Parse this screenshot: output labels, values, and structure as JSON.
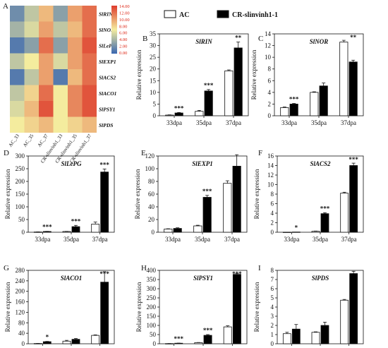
{
  "legend": {
    "ac": "AC",
    "cr": "CR-slinvinh1-1"
  },
  "ylabel": "Relative expression",
  "heatmap": {
    "letter": "A",
    "rows": [
      "SlRIN",
      "SlNOR",
      "SlLePG",
      "SlEXP1",
      "SlACS2",
      "SlACO1",
      "SlPSY1",
      "SlPDS"
    ],
    "cols": [
      "AC_33",
      "AC_35",
      "AC_37",
      "CR-slinvinh1_33",
      "CR-slinvinh1_35",
      "CR-slinvinh1_37"
    ],
    "values": [
      [
        2,
        5,
        9,
        3,
        10,
        12
      ],
      [
        4,
        6,
        10,
        5,
        9,
        12
      ],
      [
        1,
        3,
        12,
        3,
        10,
        13
      ],
      [
        5,
        7,
        10,
        6,
        10,
        12
      ],
      [
        1,
        5,
        10,
        1,
        9,
        12
      ],
      [
        5,
        8,
        12,
        7,
        11,
        13
      ],
      [
        6,
        9,
        13,
        7,
        11,
        13
      ],
      [
        7,
        8,
        9,
        7,
        8,
        9
      ]
    ],
    "colorbar_ticks": [
      "14.00",
      "12.00",
      "10.00",
      "8.00",
      "6.00",
      "4.00",
      "2.00",
      "0.00"
    ],
    "min": 0,
    "max": 14,
    "colors": [
      "#3a67b0",
      "#f4ec9e",
      "#de3b2c"
    ]
  },
  "chart_data": [
    {
      "id": "B",
      "type": "bar",
      "title": "SlRIN",
      "categories": [
        "33dpa",
        "35dpa",
        "37dpa"
      ],
      "series": [
        {
          "name": "AC",
          "values": [
            0.3,
            1.9,
            19.2
          ],
          "err": [
            0.1,
            0.4,
            0.4
          ]
        },
        {
          "name": "CR-slinvinh1-1",
          "values": [
            1.2,
            10.6,
            29
          ],
          "err": [
            0.2,
            0.6,
            2.5
          ]
        }
      ],
      "ylim": [
        0,
        35
      ],
      "yticks": [
        0,
        5,
        10,
        15,
        20,
        25,
        30,
        35
      ],
      "sig": [
        "***",
        "***",
        "**"
      ]
    },
    {
      "id": "C",
      "type": "bar",
      "title": "SlNOR",
      "categories": [
        "33dpa",
        "35dpa",
        "37dpa"
      ],
      "series": [
        {
          "name": "AC",
          "values": [
            1.4,
            4,
            12.6
          ],
          "err": [
            0.1,
            0.1,
            0.3
          ]
        },
        {
          "name": "CR-slinvinh1-1",
          "values": [
            2,
            5.1,
            9.2
          ],
          "err": [
            0.1,
            0.5,
            0.3
          ]
        }
      ],
      "ylim": [
        0,
        14
      ],
      "yticks": [
        0,
        2,
        4,
        6,
        8,
        10,
        12,
        14
      ],
      "sig": [
        "***",
        "",
        ""
      ]
    },
    {
      "id": "D",
      "type": "bar",
      "title": "SlLePG",
      "categories": [
        "33dpa",
        "35dpa",
        "37dpa"
      ],
      "series": [
        {
          "name": "AC",
          "values": [
            1,
            3,
            32
          ],
          "err": [
            0.3,
            0.5,
            8
          ]
        },
        {
          "name": "CR-slinvinh1-1",
          "values": [
            3,
            22,
            237
          ],
          "err": [
            0.5,
            5,
            12
          ]
        }
      ],
      "ylim": [
        0,
        300
      ],
      "yticks": [
        0,
        50,
        100,
        150,
        200,
        250,
        300
      ],
      "sig": [
        "***",
        "***",
        "***"
      ]
    },
    {
      "id": "E",
      "type": "bar",
      "title": "SlEXP1",
      "categories": [
        "33dpa",
        "35dpa",
        "37dpa"
      ],
      "series": [
        {
          "name": "AC",
          "values": [
            5,
            10,
            77
          ],
          "err": [
            0.5,
            1,
            4
          ]
        },
        {
          "name": "CR-slinvinh1-1",
          "values": [
            6,
            55,
            104
          ],
          "err": [
            1,
            3,
            18
          ]
        }
      ],
      "ylim": [
        0,
        120
      ],
      "yticks": [
        0,
        20,
        40,
        60,
        80,
        100,
        120
      ],
      "sig": [
        "",
        "***",
        ""
      ]
    },
    {
      "id": "F",
      "type": "bar",
      "title": "SlACS2",
      "categories": [
        "33dpa",
        "35dpa",
        "37dpa"
      ],
      "series": [
        {
          "name": "AC",
          "values": [
            0.02,
            0.2,
            8.2
          ],
          "err": [
            0,
            0.05,
            0.2
          ]
        },
        {
          "name": "CR-slinvinh1-1",
          "values": [
            0.05,
            3.9,
            14
          ],
          "err": [
            0,
            0.2,
            0.5
          ]
        }
      ],
      "ylim": [
        0,
        16
      ],
      "yticks": [
        0,
        2,
        4,
        6,
        8,
        10,
        12,
        14,
        16
      ],
      "sig": [
        "*",
        "***",
        "***"
      ]
    },
    {
      "id": "G",
      "type": "bar",
      "title": "SlACO1",
      "categories": [
        "33dpa",
        "35dpa",
        "37dpa"
      ],
      "series": [
        {
          "name": "AC",
          "values": [
            1,
            10,
            32
          ],
          "err": [
            0.3,
            3,
            2
          ]
        },
        {
          "name": "CR-slinvinh1-1",
          "values": [
            8,
            17,
            235
          ],
          "err": [
            1,
            3,
            40
          ]
        }
      ],
      "ylim": [
        0,
        280
      ],
      "yticks": [
        0,
        40,
        80,
        120,
        160,
        200,
        240,
        280
      ],
      "sig": [
        "*",
        "",
        "***"
      ]
    },
    {
      "id": "H",
      "type": "bar",
      "title": "SlPSY1",
      "categories": [
        "33dpa",
        "35dpa",
        "37dpa"
      ],
      "series": [
        {
          "name": "AC",
          "values": [
            1,
            6,
            92
          ],
          "err": [
            0.3,
            1,
            6
          ]
        },
        {
          "name": "CR-slinvinh1-1",
          "values": [
            3,
            46,
            378
          ],
          "err": [
            0.5,
            4,
            5
          ]
        }
      ],
      "ylim": [
        0,
        400
      ],
      "yticks": [
        0,
        50,
        100,
        150,
        200,
        250,
        300,
        350,
        400
      ],
      "sig": [
        "***",
        "***",
        "***"
      ]
    },
    {
      "id": "I",
      "type": "bar",
      "title": "SlPDS",
      "categories": [
        "33dpa",
        "35dpa",
        "37dpa"
      ],
      "series": [
        {
          "name": "AC",
          "values": [
            1.1,
            1.25,
            4.75
          ],
          "err": [
            0.15,
            0.05,
            0.08
          ]
        },
        {
          "name": "CR-slinvinh1-1",
          "values": [
            1.6,
            2,
            7.65
          ],
          "err": [
            0.5,
            0.35,
            0.25
          ]
        }
      ],
      "ylim": [
        0,
        8
      ],
      "yticks": [
        0,
        1,
        2,
        3,
        4,
        5,
        6,
        7,
        8
      ],
      "sig": [
        "",
        "",
        ""
      ]
    }
  ],
  "extra_sig": {
    "C": {
      "index": 2,
      "text": "**"
    }
  }
}
